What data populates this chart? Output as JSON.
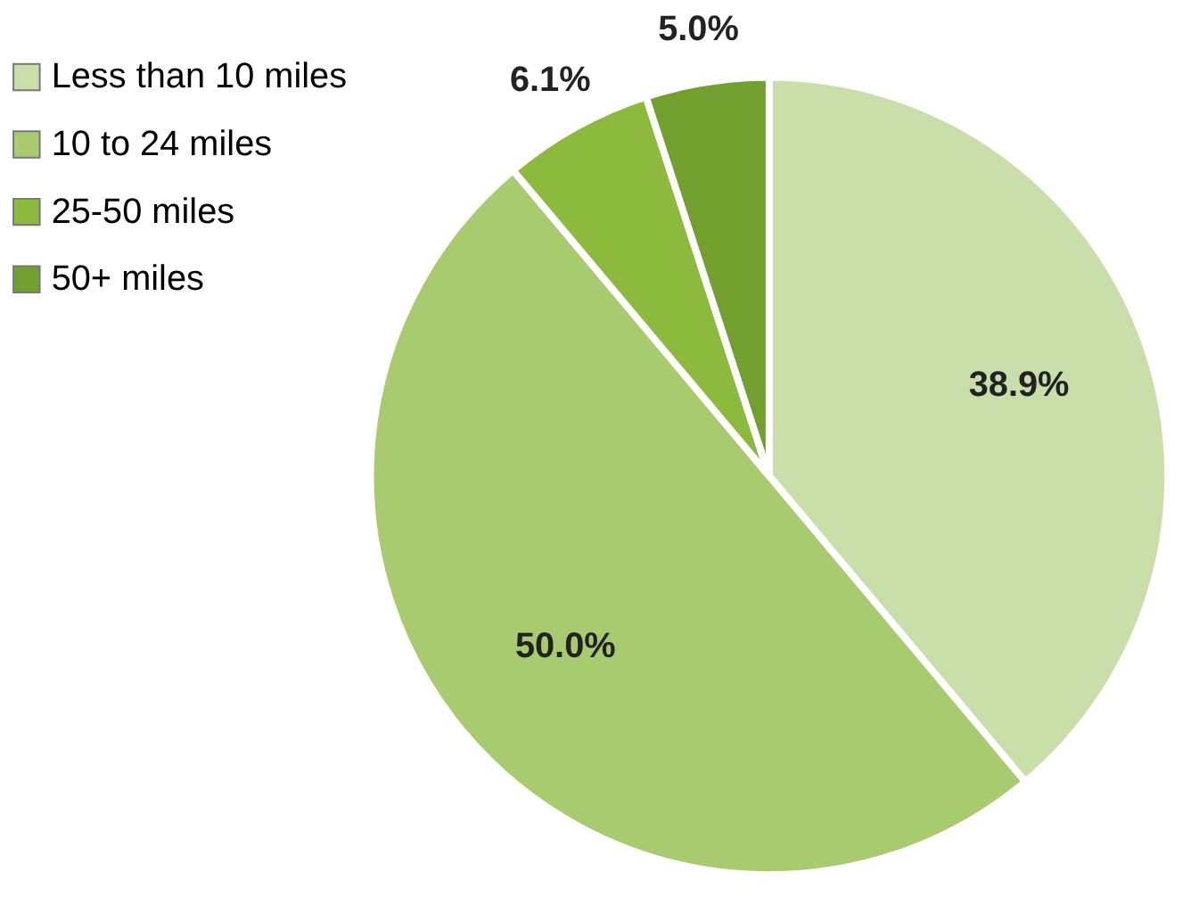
{
  "chart_data": {
    "type": "pie",
    "categories": [
      "Less than 10 miles",
      "10 to 24 miles",
      "25-50 miles",
      "50+ miles"
    ],
    "values": [
      38.9,
      50.0,
      6.1,
      5.0
    ],
    "colors": [
      "#c9dea9",
      "#a9cb6f",
      "#8cba3d",
      "#72a02e"
    ],
    "value_labels": [
      "38.9%",
      "50.0%",
      "6.1%",
      "5.0%"
    ],
    "legend": "left"
  }
}
